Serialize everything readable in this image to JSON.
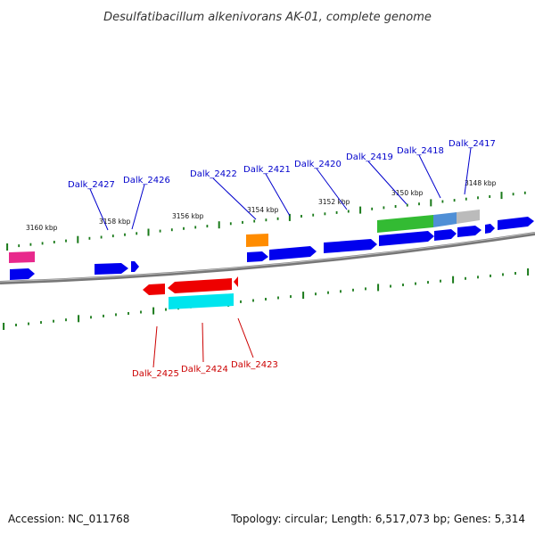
{
  "title": "Desulfatibacillum alkenivorans AK-01, complete genome",
  "footer": {
    "accession": "Accession: NC_011768",
    "summary": "Topology: circular; Length: 6,517,073 bp; Genes: 5,314"
  },
  "scale": {
    "ticks": [
      "3160 kbp",
      "3158 kbp",
      "3156 kbp",
      "3154 kbp",
      "3152 kbp",
      "3150 kbp",
      "3148 kbp"
    ]
  },
  "colors": {
    "backbone": "#777777",
    "tick": "#1a7a1a",
    "cds": "#0000ee",
    "forward_label": "#0000cc",
    "reverse_label": "#cc0000",
    "highlight_reverse": "#ee0000",
    "pink": "#e8288c",
    "orange": "#ff8c00",
    "green": "#33bb33",
    "steel": "#4f8fd6",
    "grey": "#bbbbbb",
    "cyan": "#00e5ee"
  },
  "gene_labels": {
    "forward": [
      "Dalk_2427",
      "Dalk_2426",
      "Dalk_2422",
      "Dalk_2421",
      "Dalk_2420",
      "Dalk_2419",
      "Dalk_2418",
      "Dalk_2417"
    ],
    "reverse": [
      "Dalk_2425",
      "Dalk_2424",
      "Dalk_2423"
    ]
  }
}
